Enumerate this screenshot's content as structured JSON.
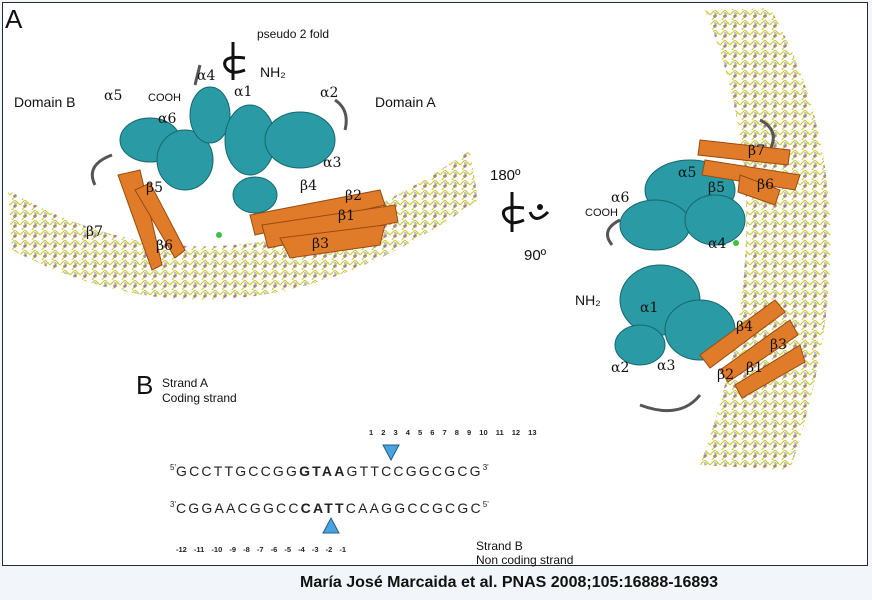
{
  "panel_a": {
    "label": "A",
    "pseudo_fold": "pseudo 2 fold",
    "domain_b": "Domain B",
    "domain_a": "Domain A",
    "left_labels": {
      "a5": "α5",
      "a4": "α4",
      "a1": "α1",
      "a2": "α2",
      "a6": "α6",
      "a3": "α3",
      "b4": "β4",
      "b2": "β2",
      "b1": "β1",
      "b3": "β3",
      "b5": "β5",
      "b7": "β7",
      "b6": "β6",
      "cooh": "COOH",
      "nh2": "NH₂"
    },
    "rotation_180": "180º",
    "rotation_90": "90º",
    "right_labels": {
      "a5": "α5",
      "a6": "α6",
      "a4": "α4",
      "a1": "α1",
      "a2": "α2",
      "a3": "α3",
      "b7": "β7",
      "b5": "β5",
      "b6": "β6",
      "b4": "β4",
      "b3": "β3",
      "b2": "β2",
      "b1": "β1",
      "cooh": "COOH",
      "nh2": "NH₂"
    }
  },
  "panel_b": {
    "label": "B",
    "strand_a_title": "Strand A",
    "strand_a_sub": "Coding strand",
    "strand_b_title": "Strand B",
    "strand_b_sub": "Non coding strand",
    "top_numbers": "1 2 3 4 5 6 7 8 9 10 11 12 13",
    "top_seq_prefix": "GCCTTGCCGG",
    "top_seq_bold": "GTAA",
    "top_seq_suffix": "GTTCCGGCGCG",
    "bottom_seq_prefix": "CGGAACGGCC",
    "bottom_seq_bold": "CATT",
    "bottom_seq_suffix": "CAAGGCCGCGC",
    "bottom_numbers": "-12 -11 -10 -9 -8 -7 -6 -5 -4 -3 -2 -1",
    "five_prime": "5'",
    "three_prime": "3'"
  },
  "citation": "María José Marcaida et al. PNAS 2008;105:16888-16893",
  "colors": {
    "helix": "#2a9aa4",
    "strand": "#e07b2a",
    "dna": "#d8d84a",
    "marker": "#4aa3df"
  }
}
